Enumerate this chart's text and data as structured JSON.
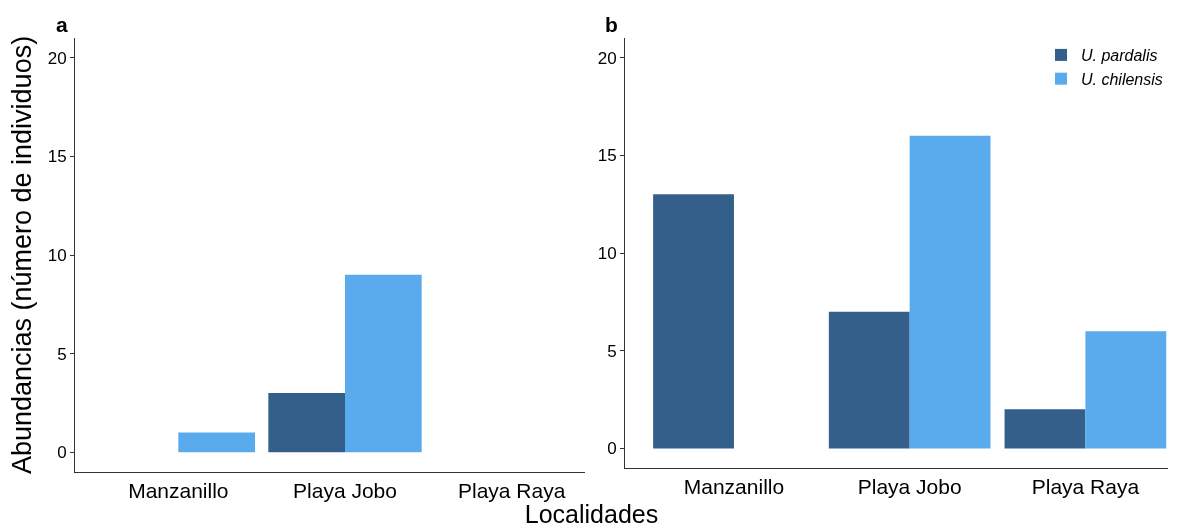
{
  "chart_data": [
    {
      "type": "bar",
      "title": "a",
      "ylabel": "Abundancias (número de individuos)",
      "xlabel": "Localidades",
      "categories": [
        "Manzanillo",
        "Playa Jobo",
        "Playa Raya"
      ],
      "series": [
        {
          "color": "#335f8a",
          "values": [
            0,
            3,
            0
          ]
        },
        {
          "color": "#5aaaee",
          "values": [
            1,
            9,
            0
          ]
        }
      ],
      "ylim": [
        -1,
        21
      ],
      "yticks": [
        0,
        5,
        10,
        15,
        20
      ],
      "grid": false,
      "legend": false
    },
    {
      "type": "bar",
      "title": "b",
      "categories": [
        "Manzanillo",
        "Playa Jobo",
        "Playa Raya"
      ],
      "series": [
        {
          "name": "U. pardalis",
          "color": "#335f8a",
          "values": [
            13,
            7,
            2
          ]
        },
        {
          "name": "U. chilensis",
          "color": "#5aaaee",
          "values": [
            0,
            16,
            6
          ]
        }
      ],
      "ylim": [
        -1,
        21
      ],
      "yticks": [
        0,
        5,
        10,
        15,
        20
      ],
      "grid": false,
      "legend": "top right"
    }
  ]
}
